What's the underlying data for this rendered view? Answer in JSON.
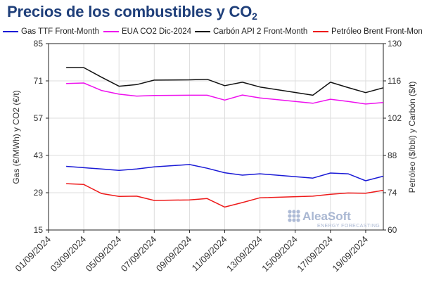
{
  "title_main": "Precios de los combustibles y CO",
  "title_sub": "2",
  "chart_data": {
    "type": "line",
    "ylabel": "Gas (€/MWh) y CO2 (€/t)",
    "y2label": "Petróleo ($/bbl) y Carbón ($/t)",
    "ylim": [
      15,
      85
    ],
    "y2lim": [
      60,
      130
    ],
    "yticks": [
      15,
      29,
      43,
      57,
      71,
      85
    ],
    "y2ticks": [
      60,
      74,
      88,
      102,
      116,
      130
    ],
    "xtick_labels": [
      "01/09/2024",
      "03/09/2024",
      "05/09/2024",
      "07/09/2024",
      "09/09/2024",
      "11/09/2024",
      "13/09/2024",
      "15/09/2024",
      "17/09/2024",
      "19/09/2024"
    ],
    "x": [
      "02/09/2024",
      "03/09/2024",
      "04/09/2024",
      "05/09/2024",
      "06/09/2024",
      "07/09/2024",
      "09/09/2024",
      "10/09/2024",
      "11/09/2024",
      "12/09/2024",
      "13/09/2024",
      "16/09/2024",
      "17/09/2024",
      "18/09/2024",
      "19/09/2024",
      "20/09/2024"
    ],
    "grid": true,
    "legend_position": "top",
    "series": [
      {
        "name": "Gas TTF Front-Month",
        "axis": "left",
        "color": "#1a1ad6",
        "values": [
          38.9,
          38.4,
          37.9,
          37.4,
          37.9,
          38.7,
          39.6,
          38.2,
          36.5,
          35.6,
          36.1,
          34.5,
          36.4,
          36.1,
          33.5,
          35.2
        ]
      },
      {
        "name": "EUA CO2 Dic-2024",
        "axis": "left",
        "color": "#ee10ee",
        "values": [
          70.0,
          70.2,
          67.4,
          66.0,
          65.3,
          65.5,
          65.6,
          65.6,
          63.8,
          65.7,
          64.6,
          62.6,
          64.1,
          63.3,
          62.3,
          62.9
        ]
      },
      {
        "name": "Carbón API 2 Front-Month",
        "axis": "right",
        "color": "#111111",
        "values": [
          121.0,
          121.0,
          117.4,
          114.0,
          114.6,
          116.3,
          116.4,
          116.6,
          114.2,
          115.5,
          113.7,
          110.6,
          115.5,
          113.5,
          111.6,
          113.4
        ]
      },
      {
        "name": "Petróleo Brent Front-Month",
        "axis": "right",
        "color": "#ee1a1a",
        "values": [
          77.4,
          77.1,
          73.7,
          72.6,
          72.7,
          71.1,
          71.3,
          71.8,
          68.6,
          70.3,
          72.1,
          72.7,
          73.4,
          73.9,
          73.8,
          74.9
        ]
      }
    ]
  },
  "watermark": {
    "brand": "AleaSoft",
    "tagline": "ENERGY FORECASTING"
  }
}
